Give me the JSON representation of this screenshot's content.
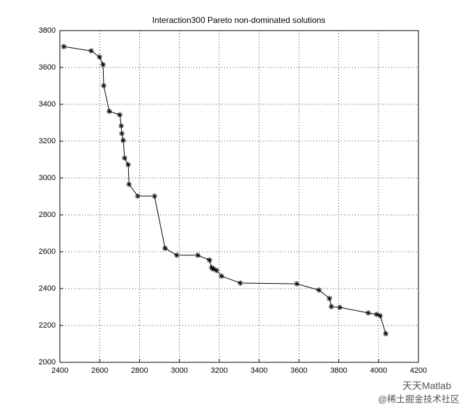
{
  "chart_data": {
    "type": "line",
    "title": "Interaction300 Pareto non-dominated solutions",
    "series": [
      {
        "color": "#000000",
        "marker": "*",
        "x": [
          2420,
          2557,
          2599,
          2617,
          2620,
          2648,
          2701,
          2708,
          2711,
          2718,
          2725,
          2743,
          2747,
          2791,
          2875,
          2928,
          2987,
          3092,
          3151,
          3162,
          3172,
          3187,
          3211,
          3306,
          3589,
          3701,
          3753,
          3763,
          3805,
          3948,
          3990,
          4008,
          4036
        ],
        "values": [
          3713,
          3690,
          3657,
          3615,
          3502,
          3362,
          3343,
          3283,
          3242,
          3204,
          3109,
          3072,
          2966,
          2902,
          2902,
          2619,
          2581,
          2581,
          2555,
          2513,
          2506,
          2498,
          2468,
          2430,
          2426,
          2392,
          2347,
          2302,
          2298,
          2268,
          2260,
          2253,
          2155
        ]
      }
    ],
    "xlim": [
      2400,
      4200
    ],
    "xticks": [
      2400,
      2600,
      2800,
      3000,
      3200,
      3400,
      3600,
      3800,
      4000,
      4200
    ],
    "ylim": [
      2000,
      3800
    ],
    "yticks": [
      2000,
      2200,
      2400,
      2600,
      2800,
      3000,
      3200,
      3400,
      3600,
      3800
    ],
    "grid": true
  },
  "watermark": {
    "line1": "天天Matlab",
    "line2": "@稀土掘金技术社区"
  }
}
